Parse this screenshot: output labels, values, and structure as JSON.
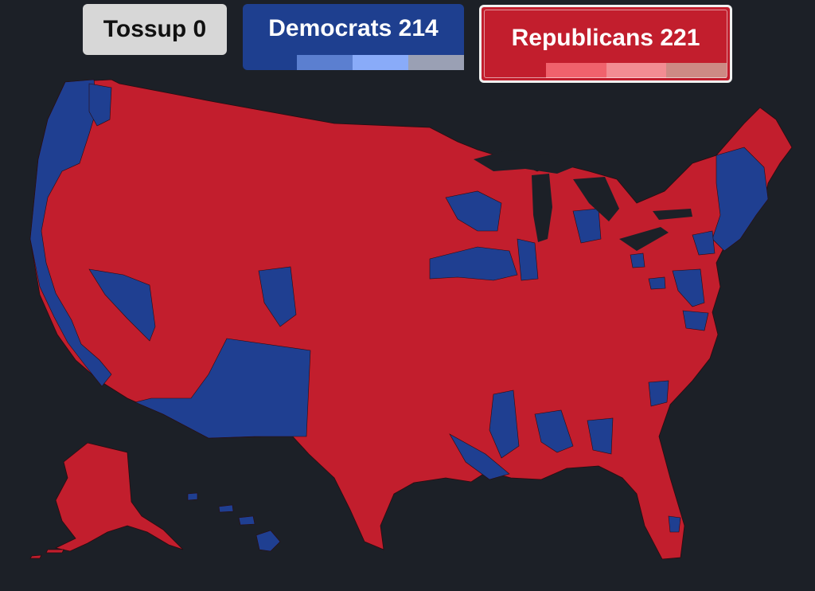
{
  "tallies": {
    "tossup": {
      "label": "Tossup 0",
      "color": "#d7d7d7"
    },
    "democrats": {
      "label": "Democrats 214",
      "color": "#1e3f8f",
      "segments": [
        "#5b7fd0",
        "#89abf9",
        "#9aa0b4"
      ]
    },
    "republicans": {
      "label": "Republicans 221",
      "color": "#c21e2d",
      "segments": [
        "#f0626c",
        "#f28c92",
        "#cd8a84"
      ]
    }
  },
  "map": {
    "background": "#1c2027",
    "republican_fill": "#c21e2d",
    "democrat_fill": "#1f3f91",
    "border_color": "#2a0b10"
  }
}
